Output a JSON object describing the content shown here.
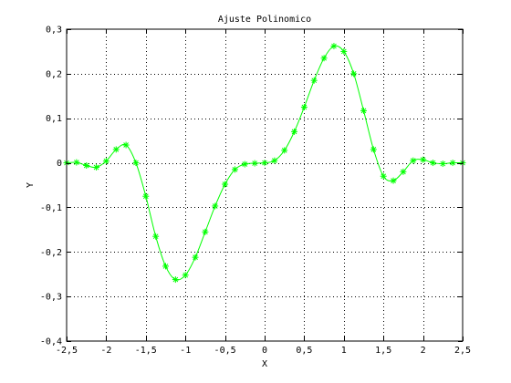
{
  "chart_data": {
    "type": "line",
    "title": "Ajuste Polinomico",
    "xlabel": "X",
    "ylabel": "Y",
    "xlim": [
      -2.5,
      2.5
    ],
    "ylim": [
      -0.4,
      0.3
    ],
    "xticks": [
      -2.5,
      -2,
      -1.5,
      -1,
      -0.5,
      0,
      0.5,
      1,
      1.5,
      2,
      2.5
    ],
    "xtick_labels": [
      "-2,5",
      "-2",
      "-1,5",
      "-1",
      "-0,5",
      "0",
      "0,5",
      "1",
      "1,5",
      "2",
      "2,5"
    ],
    "yticks": [
      -0.4,
      -0.3,
      -0.2,
      -0.1,
      0,
      0.1,
      0.2,
      0.3
    ],
    "ytick_labels": [
      "-0,4",
      "-0,3",
      "-0,2",
      "-0,1",
      "0",
      "0,1",
      "0,2",
      "0,3"
    ],
    "grid": true,
    "series": [
      {
        "color": "#00ff00",
        "line_style": "solid",
        "marker": "asterisk",
        "x": [
          -2.5,
          -2.375,
          -2.25,
          -2.125,
          -2.0,
          -1.875,
          -1.75,
          -1.625,
          -1.5,
          -1.375,
          -1.25,
          -1.125,
          -1.0,
          -0.875,
          -0.75,
          -0.625,
          -0.5,
          -0.375,
          -0.25,
          -0.125,
          0.0,
          0.125,
          0.25,
          0.375,
          0.5,
          0.625,
          0.75,
          0.875,
          1.0,
          1.125,
          1.25,
          1.375,
          1.5,
          1.625,
          1.75,
          1.875,
          2.0,
          2.125,
          2.25,
          2.375,
          2.5
        ],
        "y": [
          0.0,
          0.001,
          -0.006,
          -0.01,
          0.004,
          0.03,
          0.04,
          0.0,
          -0.075,
          -0.165,
          -0.232,
          -0.262,
          -0.252,
          -0.212,
          -0.155,
          -0.097,
          -0.048,
          -0.015,
          -0.003,
          -0.001,
          0.0,
          0.005,
          0.028,
          0.07,
          0.125,
          0.185,
          0.235,
          0.262,
          0.25,
          0.2,
          0.117,
          0.03,
          -0.03,
          -0.04,
          -0.02,
          0.005,
          0.007,
          0.0,
          -0.002,
          0.0,
          0.0
        ]
      }
    ]
  }
}
